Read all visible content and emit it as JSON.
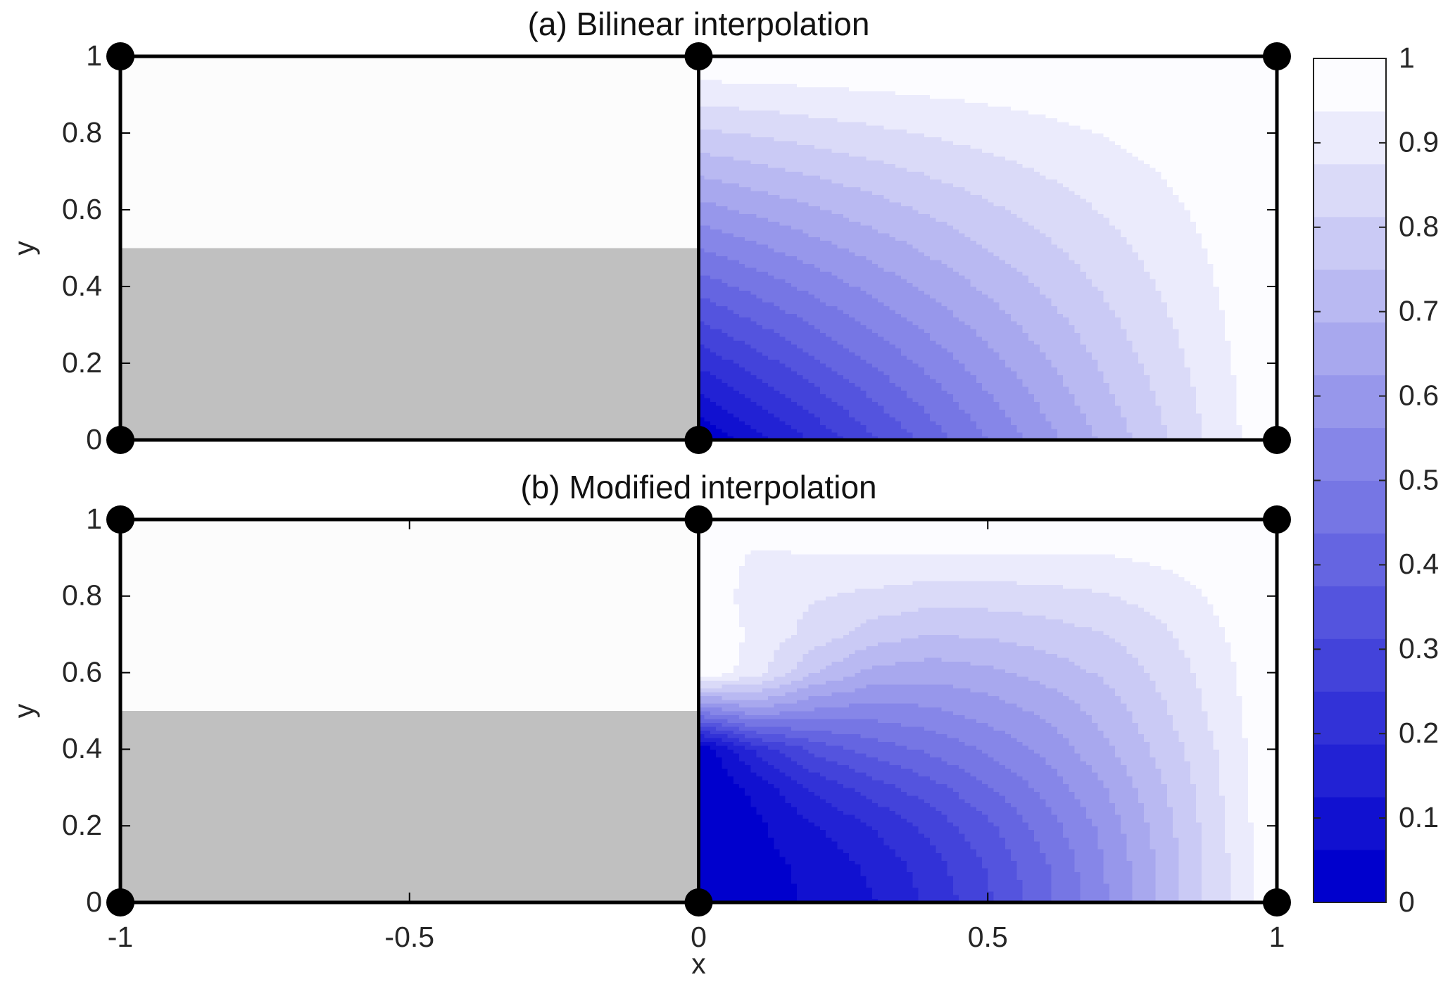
{
  "chart_data": [
    {
      "type": "contour",
      "title": "(a) Bilinear interpolation",
      "ylabel": "y",
      "xlim": [
        -1,
        1
      ],
      "ylim": [
        0,
        1
      ],
      "yticks": [
        0,
        0.2,
        0.4,
        0.6,
        0.8,
        1
      ],
      "grid_x": [
        0,
        0.1,
        0.2,
        0.3,
        0.4,
        0.5,
        0.6,
        0.7,
        0.8,
        0.9,
        1
      ],
      "grid_y": [
        0,
        0.1,
        0.2,
        0.3,
        0.4,
        0.5,
        0.6,
        0.7,
        0.8,
        0.9,
        1
      ],
      "z": [
        [
          0,
          0.1,
          0.2,
          0.3,
          0.4,
          0.5,
          0.6,
          0.7,
          0.8,
          0.9,
          1
        ],
        [
          0.1,
          0.19,
          0.28,
          0.37,
          0.46,
          0.55,
          0.64,
          0.73,
          0.82,
          0.91,
          1
        ],
        [
          0.2,
          0.28,
          0.36,
          0.44,
          0.52,
          0.6,
          0.68,
          0.76,
          0.84,
          0.92,
          1
        ],
        [
          0.3,
          0.37,
          0.44,
          0.51,
          0.58,
          0.65,
          0.72,
          0.79,
          0.86,
          0.93,
          1
        ],
        [
          0.4,
          0.46,
          0.52,
          0.58,
          0.64,
          0.7,
          0.76,
          0.82,
          0.88,
          0.94,
          1
        ],
        [
          0.5,
          0.55,
          0.6,
          0.65,
          0.7,
          0.75,
          0.8,
          0.85,
          0.9,
          0.95,
          1
        ],
        [
          0.6,
          0.64,
          0.68,
          0.72,
          0.76,
          0.8,
          0.84,
          0.88,
          0.92,
          0.96,
          1
        ],
        [
          0.7,
          0.73,
          0.76,
          0.79,
          0.82,
          0.85,
          0.88,
          0.91,
          0.94,
          0.97,
          1
        ],
        [
          0.8,
          0.82,
          0.84,
          0.86,
          0.88,
          0.9,
          0.92,
          0.94,
          0.96,
          0.98,
          1
        ],
        [
          0.9,
          0.91,
          0.92,
          0.93,
          0.94,
          0.95,
          0.96,
          0.97,
          0.98,
          0.99,
          1
        ],
        [
          1,
          1,
          1,
          1,
          1,
          1,
          1,
          1,
          1,
          1,
          1
        ]
      ]
    },
    {
      "type": "contour",
      "title": "(b) Modified interpolation",
      "ylabel": "y",
      "xlabel": "x",
      "xlim": [
        -1,
        1
      ],
      "ylim": [
        0,
        1
      ],
      "xticks": [
        -1,
        -0.5,
        0,
        0.5,
        1
      ],
      "yticks": [
        0,
        0.2,
        0.4,
        0.6,
        0.8,
        1
      ],
      "grid_x": [
        0,
        0.1,
        0.2,
        0.3,
        0.4,
        0.5,
        0.6,
        0.7,
        0.8,
        0.9,
        1
      ],
      "grid_y": [
        0,
        0.1,
        0.2,
        0.3,
        0.4,
        0.5,
        0.6,
        0.7,
        0.8,
        0.9,
        1
      ],
      "z": [
        [
          0,
          0.04,
          0.07,
          0.12,
          0.2,
          0.3,
          0.42,
          0.55,
          0.7,
          0.85,
          1
        ],
        [
          0,
          0.04,
          0.08,
          0.14,
          0.22,
          0.32,
          0.43,
          0.56,
          0.7,
          0.85,
          1
        ],
        [
          0,
          0.05,
          0.12,
          0.19,
          0.27,
          0.36,
          0.47,
          0.58,
          0.72,
          0.86,
          1
        ],
        [
          0,
          0.08,
          0.2,
          0.28,
          0.35,
          0.43,
          0.52,
          0.62,
          0.74,
          0.87,
          1
        ],
        [
          0,
          0.2,
          0.33,
          0.4,
          0.45,
          0.51,
          0.58,
          0.67,
          0.77,
          0.88,
          1
        ],
        [
          0.5,
          0.6,
          0.55,
          0.53,
          0.55,
          0.59,
          0.64,
          0.71,
          0.8,
          0.9,
          1
        ],
        [
          1,
          0.9,
          0.75,
          0.67,
          0.65,
          0.67,
          0.71,
          0.76,
          0.83,
          0.91,
          1
        ],
        [
          1,
          0.92,
          0.85,
          0.78,
          0.75,
          0.76,
          0.78,
          0.81,
          0.86,
          0.93,
          1
        ],
        [
          1,
          0.9,
          0.88,
          0.86,
          0.84,
          0.84,
          0.85,
          0.87,
          0.9,
          0.95,
          1
        ],
        [
          1,
          0.92,
          0.93,
          0.93,
          0.93,
          0.93,
          0.93,
          0.93,
          0.95,
          0.97,
          1
        ],
        [
          1,
          1,
          1,
          1,
          1,
          1,
          1,
          1,
          1,
          1,
          1
        ]
      ]
    },
    {
      "type": "colorbar",
      "lim": [
        0,
        1
      ],
      "ticks": [
        0,
        0.1,
        0.2,
        0.3,
        0.4,
        0.5,
        0.6,
        0.7,
        0.8,
        0.9,
        1
      ],
      "levels": [
        0,
        0.0625,
        0.125,
        0.1875,
        0.25,
        0.3125,
        0.375,
        0.4375,
        0.5,
        0.5625,
        0.625,
        0.6875,
        0.75,
        0.8125,
        0.875,
        0.9375,
        1
      ],
      "colors": [
        "#0000cd",
        "#fcfcff"
      ]
    }
  ]
}
